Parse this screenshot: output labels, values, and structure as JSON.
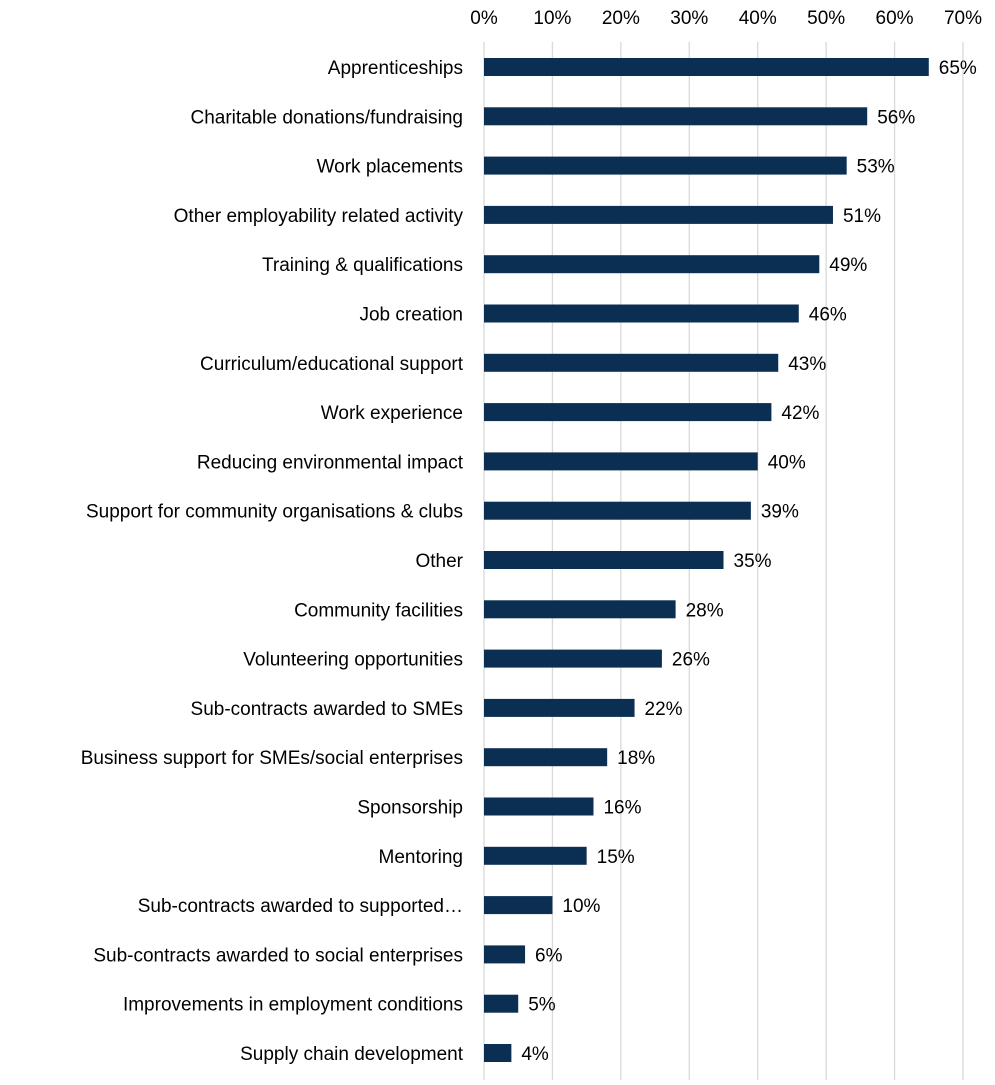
{
  "colors": {
    "bar": "#0b2f52",
    "grid": "#d9d9d9",
    "text": "#000000"
  },
  "chart_data": {
    "type": "bar",
    "orientation": "horizontal",
    "title": "",
    "xlabel": "",
    "ylabel": "",
    "xlim": [
      0,
      70
    ],
    "x_ticks": [
      "0%",
      "10%",
      "20%",
      "30%",
      "40%",
      "50%",
      "60%",
      "70%"
    ],
    "x_axis_position": "top",
    "grid": "vertical",
    "legend": "none",
    "categories": [
      "Apprenticeships",
      "Charitable donations/fundraising",
      "Work placements",
      "Other employability related activity",
      "Training & qualifications",
      "Job creation",
      "Curriculum/educational support",
      "Work experience",
      "Reducing environmental impact",
      "Support for community organisations & clubs",
      "Other",
      "Community facilities",
      "Volunteering opportunities",
      "Sub-contracts awarded to SMEs",
      "Business support for SMEs/social enterprises",
      "Sponsorship",
      "Mentoring",
      "Sub-contracts awarded to supported…",
      "Sub-contracts awarded to social enterprises",
      "Improvements in employment conditions",
      "Supply chain development"
    ],
    "values": [
      65,
      56,
      53,
      51,
      49,
      46,
      43,
      42,
      40,
      39,
      35,
      28,
      26,
      22,
      18,
      16,
      15,
      10,
      6,
      5,
      4
    ],
    "data_labels": [
      "65%",
      "56%",
      "53%",
      "51%",
      "49%",
      "46%",
      "43%",
      "42%",
      "40%",
      "39%",
      "35%",
      "28%",
      "26%",
      "22%",
      "18%",
      "16%",
      "15%",
      "10%",
      "6%",
      "5%",
      "4%"
    ]
  }
}
